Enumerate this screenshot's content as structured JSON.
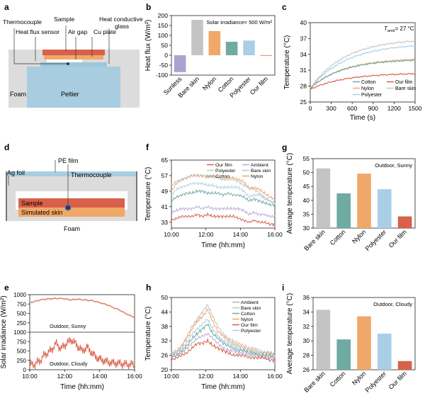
{
  "colors": {
    "our_film": "#d9604a",
    "ambient": "#b7acd6",
    "polyester": "#a9cfe6",
    "bare_skin": "#c4c4c4",
    "cotton": "#6faaa3",
    "nylon": "#f0a868",
    "sunless": "#a9a3d0",
    "foam": "#dcdcdc",
    "peltier": "#a8cde0",
    "sample": "#d9604a",
    "skin": "#f0a868",
    "pe_film": "#a8cde0"
  },
  "panels": {
    "a": {
      "letter": "a",
      "labels": {
        "thermocouple": "Thermocouple",
        "sample": "Sample",
        "heat_glass_1": "Heat conductive",
        "heat_glass_2": "glass",
        "heat_flux_sensor": "Heat flux sensor",
        "air_gap": "Air gap",
        "cu_plate": "Cu plate",
        "foam": "Foam",
        "peltier": "Peltier"
      }
    },
    "d": {
      "letter": "d",
      "labels": {
        "pe_film": "PE film",
        "ag_foil": "Ag foil",
        "thermocouple": "Thermocouple",
        "sample": "Sample",
        "simulated_skin": "Simulated skin",
        "foam": "Foam"
      }
    }
  },
  "chart_data": [
    {
      "id": "b",
      "letter": "b",
      "type": "bar",
      "ylabel": "Heat flux (W/m²)",
      "ylim": [
        -100,
        200
      ],
      "yticks": [
        -100,
        -50,
        0,
        50,
        100,
        150,
        200
      ],
      "annotation": "Solar irradiance= 500 W/m²",
      "categories": [
        "Sunless",
        "Bare skin",
        "Nylon",
        "Cotton",
        "Polyester",
        "Our film"
      ],
      "values": [
        -85,
        178,
        122,
        68,
        74,
        0.5
      ],
      "colors": [
        "#a9a3d0",
        "#c4c4c4",
        "#f0a868",
        "#6faaa3",
        "#a9cfe6",
        "#d9604a"
      ]
    },
    {
      "id": "c",
      "letter": "c",
      "type": "line",
      "xlabel": "Time (s)",
      "ylabel": "Temperature (°C)",
      "xlim": [
        0,
        1500
      ],
      "xticks": [
        0,
        300,
        600,
        900,
        1200,
        1500
      ],
      "ylim": [
        25,
        40
      ],
      "yticks": [
        25,
        28,
        31,
        34,
        37,
        40
      ],
      "annotation_main": "T",
      "annotation_sub": "amb",
      "annotation_rest": "= 27 °C",
      "legend": [
        "Cotton",
        "Our film",
        "Nylon",
        "Bare skin",
        "Polyester"
      ],
      "series": [
        {
          "name": "Bare skin",
          "color": "#c4c4c4",
          "start": 27.6,
          "end": 37.0,
          "tau": 500
        },
        {
          "name": "Polyester",
          "color": "#a9cfe6",
          "start": 27.6,
          "end": 36.1,
          "tau": 520
        },
        {
          "name": "Nylon",
          "color": "#f0a868",
          "start": 27.6,
          "end": 33.3,
          "tau": 480
        },
        {
          "name": "Cotton",
          "color": "#6faaa3",
          "start": 27.6,
          "end": 33.1,
          "tau": 460
        },
        {
          "name": "Our film",
          "color": "#d9604a",
          "start": 27.4,
          "end": 30.5,
          "tau": 500
        }
      ]
    },
    {
      "id": "f",
      "letter": "f",
      "type": "line",
      "xlabel": "Time (hh:mm)",
      "ylabel": "Temperature (°C)",
      "xticks": [
        "10:00",
        "12:00",
        "14:00",
        "16:00"
      ],
      "ylim": [
        30,
        65
      ],
      "yticks": [
        33,
        41,
        49,
        57,
        65
      ],
      "legend": [
        "Our film",
        "Ambient",
        "Polyester",
        "Bare skin",
        "Cotton",
        "Nylon"
      ],
      "series": [
        {
          "name": "Nylon",
          "color": "#f0a868",
          "values": [
            49,
            53,
            55,
            56,
            57,
            57,
            57,
            56,
            57,
            56,
            55,
            56,
            56,
            55,
            54,
            50,
            51,
            50,
            48,
            46,
            45
          ]
        },
        {
          "name": "Bare skin",
          "color": "#c4c4c4",
          "values": [
            52,
            54,
            55,
            56,
            57,
            57,
            57,
            57,
            56,
            56,
            55,
            55,
            55,
            54,
            52,
            51,
            50,
            48,
            46,
            44,
            43
          ]
        },
        {
          "name": "Polyester",
          "color": "#a9cfe6",
          "values": [
            47,
            50,
            51,
            52,
            53,
            53,
            53,
            52,
            52,
            51,
            51,
            51,
            51,
            51,
            49,
            46,
            47,
            47,
            45,
            44,
            43
          ]
        },
        {
          "name": "Cotton",
          "color": "#6faaa3",
          "values": [
            44,
            46,
            47,
            48,
            48,
            49,
            49,
            48,
            48,
            48,
            47,
            48,
            47,
            47,
            46,
            44,
            45,
            44,
            43,
            42,
            42
          ]
        },
        {
          "name": "Ambient",
          "color": "#b7acd6",
          "values": [
            38,
            39,
            40,
            40,
            40,
            41,
            40,
            41,
            40,
            40,
            40,
            40,
            40,
            40,
            39,
            37,
            38,
            37,
            37,
            36,
            36
          ]
        },
        {
          "name": "Our film",
          "color": "#d9604a",
          "values": [
            34,
            35,
            36,
            36,
            36,
            37,
            36,
            37,
            36,
            36,
            36,
            36,
            36,
            35,
            34,
            33,
            34,
            33,
            33,
            32,
            32
          ]
        }
      ]
    },
    {
      "id": "g",
      "letter": "g",
      "type": "bar",
      "ylabel": "Average temperature (°C)",
      "ylim": [
        30,
        55
      ],
      "yticks": [
        30,
        35,
        40,
        45,
        50,
        55
      ],
      "annotation": "Outdoor, Sunny",
      "categories": [
        "Bare skin",
        "Cotton",
        "Nylon",
        "Polyester",
        "Our film"
      ],
      "values": [
        51.5,
        42.5,
        49.6,
        44.0,
        34.2
      ],
      "colors": [
        "#c4c4c4",
        "#6faaa3",
        "#f0a868",
        "#a9cfe6",
        "#d9604a"
      ]
    },
    {
      "id": "e",
      "letter": "e",
      "type": "line",
      "xlabel": "Time (hh:mm)",
      "ylabel": "Solar irradiance (W/m²)",
      "xticks": [
        "10:00",
        "12:00",
        "14:00",
        "16:00"
      ],
      "top_yticks": [
        250,
        500,
        750,
        1000
      ],
      "bottom_yticks": [
        0,
        250,
        500,
        750,
        1000
      ],
      "ylim": [
        0,
        1000
      ],
      "top_label": "Outdoor, Sunny",
      "bottom_label": "Outdoor, Cloudy",
      "color": "#d9604a",
      "top_values": [
        790,
        820,
        860,
        880,
        890,
        900,
        900,
        880,
        860,
        880,
        870,
        850,
        840,
        800,
        760,
        720,
        650,
        600,
        520,
        450,
        400
      ],
      "bottom_values": [
        130,
        150,
        250,
        420,
        500,
        700,
        560,
        700,
        800,
        650,
        500,
        600,
        420,
        300,
        250,
        200,
        180,
        170,
        150,
        140,
        130
      ]
    },
    {
      "id": "h",
      "letter": "h",
      "type": "line",
      "xlabel": "Time (hh:mm)",
      "ylabel": "Temperature (°C)",
      "xticks": [
        "10:00",
        "12:00",
        "14:00",
        "16:00"
      ],
      "ylim": [
        20,
        50
      ],
      "yticks": [
        20,
        26,
        32,
        38,
        44,
        50
      ],
      "legend": [
        "Ambient",
        "Bare skin",
        "Cotton",
        "Nylon",
        "Our film",
        "Polyester"
      ],
      "series": [
        {
          "name": "Bare skin",
          "color": "#c4c4c4",
          "values": [
            27,
            28,
            30,
            34,
            38,
            41,
            44,
            47,
            42,
            38,
            35,
            33,
            32,
            31,
            30,
            29,
            29,
            28,
            27,
            27,
            27
          ]
        },
        {
          "name": "Nylon",
          "color": "#f0a868",
          "values": [
            27,
            27,
            30,
            33,
            37,
            40,
            42,
            45,
            40,
            36,
            34,
            32,
            31,
            30,
            29,
            28,
            28,
            27,
            27,
            27,
            26
          ]
        },
        {
          "name": "Polyester",
          "color": "#a9cfe6",
          "values": [
            26,
            27,
            29,
            31,
            35,
            37,
            39,
            41,
            37,
            34,
            32,
            31,
            30,
            29,
            28,
            28,
            27,
            27,
            26,
            26,
            26
          ]
        },
        {
          "name": "Cotton",
          "color": "#6faaa3",
          "values": [
            26,
            26,
            28,
            30,
            33,
            35,
            37,
            39,
            35,
            33,
            31,
            30,
            29,
            28,
            28,
            27,
            27,
            26,
            26,
            26,
            25
          ]
        },
        {
          "name": "Ambient",
          "color": "#b7acd6",
          "values": [
            25,
            26,
            27,
            29,
            31,
            33,
            34,
            35,
            33,
            31,
            29,
            28,
            28,
            27,
            27,
            26,
            26,
            26,
            25,
            25,
            25
          ]
        },
        {
          "name": "Our film",
          "color": "#d9604a",
          "values": [
            24,
            25,
            26,
            27,
            29,
            31,
            31,
            32,
            30,
            29,
            28,
            27,
            26,
            26,
            26,
            25,
            25,
            25,
            25,
            24,
            24
          ]
        }
      ]
    },
    {
      "id": "i",
      "letter": "i",
      "type": "bar",
      "ylabel": "Average temperature (°C)",
      "ylim": [
        26,
        36
      ],
      "yticks": [
        26,
        28,
        30,
        32,
        34,
        36
      ],
      "annotation": "Outdoor, Cloudy",
      "categories": [
        "Bare skin",
        "Cotton",
        "Nylon",
        "Polyester",
        "Our film"
      ],
      "values": [
        34.3,
        30.2,
        33.4,
        31.0,
        27.2
      ],
      "colors": [
        "#c4c4c4",
        "#6faaa3",
        "#f0a868",
        "#a9cfe6",
        "#d9604a"
      ]
    }
  ]
}
